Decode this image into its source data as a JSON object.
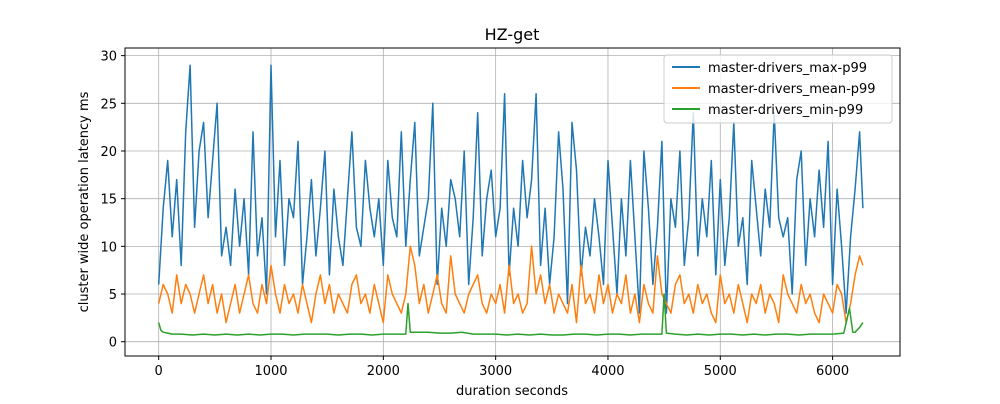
{
  "chart_data": {
    "type": "line",
    "title": "HZ-get",
    "xlabel": "duration seconds",
    "ylabel": "cluster wide operation latency ms",
    "xlim": [
      -300,
      6600
    ],
    "ylim": [
      -1.5,
      30.8
    ],
    "xticks": [
      0,
      1000,
      2000,
      3000,
      4000,
      5000,
      6000
    ],
    "yticks": [
      0,
      5,
      10,
      15,
      20,
      25,
      30
    ],
    "grid": true,
    "legend_position": "top-right",
    "series": [
      {
        "name": "master-drivers_max-p99",
        "color": "#1f77b4",
        "x": [
          0,
          40,
          80,
          120,
          160,
          200,
          240,
          280,
          320,
          360,
          400,
          440,
          480,
          520,
          560,
          600,
          640,
          680,
          720,
          760,
          800,
          840,
          880,
          920,
          960,
          1000,
          1040,
          1080,
          1120,
          1160,
          1200,
          1240,
          1280,
          1320,
          1360,
          1400,
          1440,
          1480,
          1520,
          1560,
          1600,
          1640,
          1680,
          1720,
          1760,
          1800,
          1840,
          1880,
          1920,
          1960,
          2000,
          2040,
          2080,
          2120,
          2160,
          2200,
          2240,
          2280,
          2320,
          2360,
          2400,
          2440,
          2480,
          2520,
          2560,
          2600,
          2640,
          2680,
          2720,
          2760,
          2800,
          2840,
          2880,
          2920,
          2960,
          3000,
          3040,
          3080,
          3120,
          3160,
          3200,
          3240,
          3280,
          3320,
          3360,
          3400,
          3440,
          3480,
          3520,
          3560,
          3600,
          3640,
          3680,
          3720,
          3760,
          3800,
          3840,
          3880,
          3920,
          3960,
          4000,
          4040,
          4080,
          4120,
          4160,
          4200,
          4240,
          4280,
          4320,
          4360,
          4400,
          4440,
          4480,
          4520,
          4560,
          4600,
          4640,
          4680,
          4720,
          4760,
          4800,
          4840,
          4880,
          4920,
          4960,
          5000,
          5040,
          5080,
          5120,
          5160,
          5200,
          5240,
          5280,
          5320,
          5360,
          5400,
          5440,
          5480,
          5520,
          5560,
          5600,
          5640,
          5680,
          5720,
          5760,
          5800,
          5840,
          5880,
          5920,
          5960,
          6000,
          6040,
          6080,
          6120,
          6160,
          6200,
          6240,
          6270
        ],
        "values": [
          6,
          14,
          19,
          11,
          17,
          8,
          22,
          29,
          12,
          20,
          23,
          13,
          19,
          25,
          9,
          12,
          8,
          16,
          10,
          15,
          7,
          22,
          9,
          13,
          5,
          29,
          11,
          19,
          8,
          15,
          13,
          21,
          6,
          11,
          17,
          9,
          14,
          20,
          7,
          16,
          11,
          8,
          15,
          22,
          12,
          10,
          19,
          14,
          11,
          15,
          8,
          19,
          13,
          11,
          22,
          10,
          17,
          23,
          9,
          12,
          15,
          25,
          6,
          14,
          10,
          17,
          15,
          11,
          20,
          6,
          13,
          24,
          9,
          15,
          18,
          11,
          14,
          26,
          7,
          14,
          10,
          19,
          13,
          17,
          26,
          8,
          14,
          6,
          11,
          22,
          16,
          4,
          23,
          18,
          7,
          12,
          9,
          15,
          11,
          6,
          19,
          12,
          5,
          15,
          9,
          19,
          11,
          3,
          20,
          14,
          6,
          12,
          21,
          3,
          15,
          12,
          20,
          8,
          13,
          24,
          9,
          15,
          11,
          19,
          7,
          17,
          8,
          13,
          23,
          10,
          13,
          6,
          19,
          14,
          9,
          16,
          12,
          24,
          13,
          11,
          13,
          5,
          17,
          20,
          8,
          15,
          11,
          18,
          12,
          21,
          6,
          16,
          10,
          3,
          11,
          16,
          22,
          14
        ]
      },
      {
        "name": "master-drivers_mean-p99",
        "color": "#ff7f0e",
        "x": [
          0,
          40,
          80,
          120,
          160,
          200,
          240,
          280,
          320,
          360,
          400,
          440,
          480,
          520,
          560,
          600,
          640,
          680,
          720,
          760,
          800,
          840,
          880,
          920,
          960,
          1000,
          1040,
          1080,
          1120,
          1160,
          1200,
          1240,
          1280,
          1320,
          1360,
          1400,
          1440,
          1480,
          1520,
          1560,
          1600,
          1640,
          1680,
          1720,
          1760,
          1800,
          1840,
          1880,
          1920,
          1960,
          2000,
          2040,
          2080,
          2120,
          2160,
          2200,
          2240,
          2280,
          2320,
          2360,
          2400,
          2440,
          2480,
          2520,
          2560,
          2600,
          2640,
          2680,
          2720,
          2760,
          2800,
          2840,
          2880,
          2920,
          2960,
          3000,
          3040,
          3080,
          3120,
          3160,
          3200,
          3240,
          3280,
          3320,
          3360,
          3400,
          3440,
          3480,
          3520,
          3560,
          3600,
          3640,
          3680,
          3720,
          3760,
          3800,
          3840,
          3880,
          3920,
          3960,
          4000,
          4040,
          4080,
          4120,
          4160,
          4200,
          4240,
          4280,
          4320,
          4360,
          4400,
          4440,
          4480,
          4520,
          4560,
          4600,
          4640,
          4680,
          4720,
          4760,
          4800,
          4840,
          4880,
          4920,
          4960,
          5000,
          5040,
          5080,
          5120,
          5160,
          5200,
          5240,
          5280,
          5320,
          5360,
          5400,
          5440,
          5480,
          5520,
          5560,
          5600,
          5640,
          5680,
          5720,
          5760,
          5800,
          5840,
          5880,
          5920,
          5960,
          6000,
          6040,
          6080,
          6120,
          6160,
          6200,
          6240,
          6270
        ],
        "values": [
          4,
          6,
          5,
          3,
          7,
          4,
          6,
          5,
          3,
          5,
          7,
          4,
          6,
          3,
          5,
          2,
          4,
          6,
          3,
          5,
          7,
          4,
          3,
          6,
          4,
          8,
          5,
          3,
          6,
          4,
          5,
          3,
          6,
          4,
          2,
          5,
          7,
          4,
          6,
          3,
          5,
          4,
          3,
          6,
          7,
          4,
          5,
          3,
          6,
          4,
          2,
          7,
          5,
          4,
          3,
          5,
          10,
          8,
          4,
          6,
          3,
          5,
          7,
          4,
          3,
          9,
          5,
          4,
          3,
          5,
          6,
          7,
          4,
          3,
          5,
          4,
          6,
          3,
          8,
          4,
          5,
          3,
          4,
          10,
          5,
          7,
          4,
          6,
          3,
          5,
          4,
          3,
          6,
          2,
          8,
          4,
          5,
          3,
          7,
          4,
          6,
          3,
          5,
          4,
          7,
          3,
          5,
          2,
          6,
          4,
          3,
          9,
          5,
          4,
          3,
          6,
          7,
          4,
          5,
          3,
          6,
          4,
          5,
          3,
          2,
          7,
          4,
          5,
          3,
          6,
          4,
          2,
          5,
          4,
          6,
          3,
          5,
          4,
          2,
          7,
          5,
          4,
          3,
          6,
          4,
          5,
          3,
          2,
          5,
          4,
          3,
          6,
          5,
          2,
          4,
          7,
          9,
          8
        ]
      },
      {
        "name": "master-drivers_min-p99",
        "color": "#2ca02c",
        "x": [
          0,
          20,
          40,
          80,
          120,
          200,
          300,
          400,
          500,
          600,
          700,
          800,
          900,
          1000,
          1100,
          1200,
          1300,
          1400,
          1500,
          1600,
          1700,
          1800,
          1900,
          2000,
          2100,
          2200,
          2220,
          2240,
          2300,
          2400,
          2500,
          2600,
          2700,
          2800,
          2900,
          3000,
          3100,
          3200,
          3300,
          3400,
          3500,
          3600,
          3700,
          3800,
          3900,
          4000,
          4100,
          4200,
          4300,
          4400,
          4480,
          4500,
          4520,
          4600,
          4700,
          4800,
          4900,
          5000,
          5100,
          5200,
          5300,
          5400,
          5500,
          5600,
          5700,
          5800,
          5900,
          6000,
          6100,
          6150,
          6180,
          6200,
          6240,
          6270
        ],
        "values": [
          2.0,
          1.2,
          1.0,
          0.9,
          0.8,
          0.8,
          0.7,
          0.8,
          0.7,
          0.8,
          0.7,
          0.8,
          0.7,
          0.8,
          0.8,
          0.7,
          0.8,
          0.8,
          0.8,
          0.7,
          0.8,
          0.8,
          0.7,
          0.8,
          0.8,
          0.8,
          4.0,
          1.0,
          1.0,
          1.0,
          0.9,
          0.9,
          1.0,
          0.8,
          0.8,
          0.8,
          0.7,
          0.8,
          0.7,
          0.8,
          0.7,
          0.7,
          0.8,
          0.8,
          0.7,
          0.8,
          0.8,
          0.7,
          0.8,
          0.8,
          0.8,
          5.0,
          0.9,
          0.8,
          0.7,
          0.8,
          0.7,
          0.8,
          0.8,
          0.7,
          0.8,
          0.7,
          0.8,
          0.8,
          0.7,
          0.8,
          0.8,
          0.8,
          0.9,
          3.5,
          1.0,
          1.0,
          1.5,
          2.0
        ]
      }
    ]
  }
}
